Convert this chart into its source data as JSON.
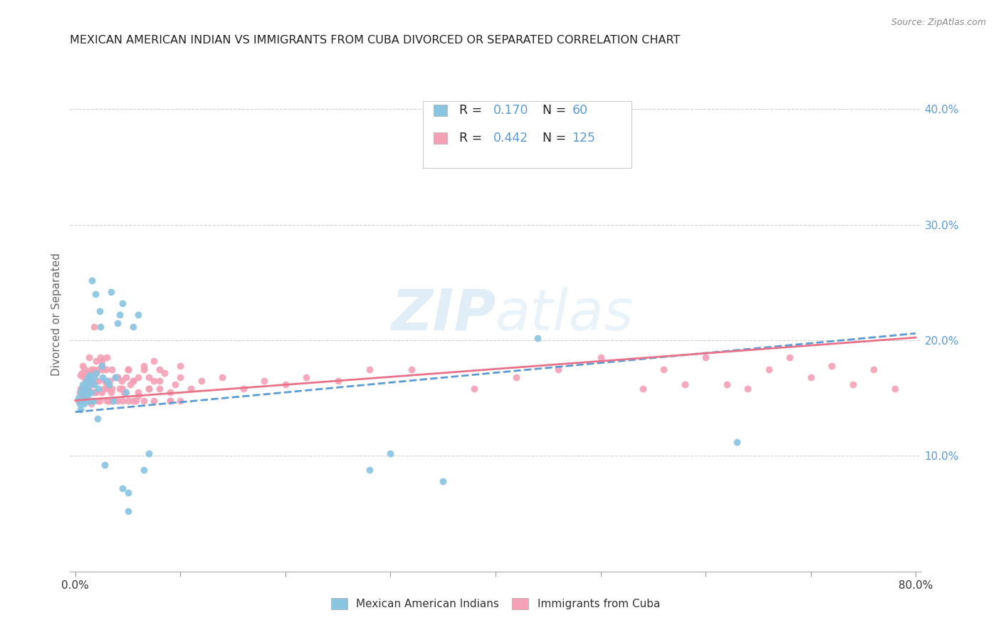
{
  "title": "MEXICAN AMERICAN INDIAN VS IMMIGRANTS FROM CUBA DIVORCED OR SEPARATED CORRELATION CHART",
  "source": "Source: ZipAtlas.com",
  "ylabel": "Divorced or Separated",
  "color_blue": "#89c4e1",
  "color_pink": "#f4a0b5",
  "color_blue_line": "#5b9bd5",
  "color_pink_line": "#e8728a",
  "color_axis_text": "#5b9bd5",
  "watermark": "ZIPatlas",
  "blue_intercept": 0.138,
  "blue_slope": 0.085,
  "pink_intercept": 0.148,
  "pink_slope": 0.068,
  "blue_x": [
    0.003,
    0.004,
    0.005,
    0.005,
    0.006,
    0.006,
    0.007,
    0.007,
    0.008,
    0.008,
    0.009,
    0.009,
    0.01,
    0.01,
    0.01,
    0.011,
    0.011,
    0.012,
    0.012,
    0.013,
    0.013,
    0.014,
    0.014,
    0.015,
    0.015,
    0.016,
    0.016,
    0.017,
    0.018,
    0.018,
    0.019,
    0.02,
    0.021,
    0.022,
    0.023,
    0.024,
    0.025,
    0.026,
    0.028,
    0.03,
    0.032,
    0.034,
    0.036,
    0.038,
    0.04,
    0.042,
    0.045,
    0.048,
    0.05,
    0.055,
    0.06,
    0.065,
    0.07,
    0.045,
    0.05,
    0.28,
    0.3,
    0.35,
    0.44,
    0.63
  ],
  "blue_y": [
    0.15,
    0.145,
    0.155,
    0.14,
    0.148,
    0.158,
    0.155,
    0.162,
    0.145,
    0.158,
    0.162,
    0.15,
    0.148,
    0.158,
    0.165,
    0.162,
    0.152,
    0.168,
    0.155,
    0.162,
    0.148,
    0.17,
    0.148,
    0.165,
    0.155,
    0.252,
    0.148,
    0.148,
    0.162,
    0.168,
    0.24,
    0.172,
    0.132,
    0.158,
    0.225,
    0.212,
    0.178,
    0.168,
    0.092,
    0.165,
    0.162,
    0.242,
    0.148,
    0.168,
    0.215,
    0.222,
    0.072,
    0.155,
    0.052,
    0.212,
    0.222,
    0.088,
    0.102,
    0.232,
    0.068,
    0.088,
    0.102,
    0.078,
    0.202,
    0.112
  ],
  "pink_x": [
    0.003,
    0.004,
    0.005,
    0.005,
    0.006,
    0.006,
    0.007,
    0.007,
    0.008,
    0.008,
    0.009,
    0.009,
    0.01,
    0.01,
    0.011,
    0.011,
    0.012,
    0.012,
    0.013,
    0.013,
    0.014,
    0.014,
    0.015,
    0.015,
    0.016,
    0.016,
    0.017,
    0.018,
    0.018,
    0.019,
    0.02,
    0.02,
    0.021,
    0.022,
    0.022,
    0.023,
    0.024,
    0.025,
    0.026,
    0.027,
    0.028,
    0.029,
    0.03,
    0.031,
    0.032,
    0.033,
    0.034,
    0.035,
    0.036,
    0.038,
    0.04,
    0.042,
    0.044,
    0.046,
    0.048,
    0.05,
    0.052,
    0.055,
    0.058,
    0.06,
    0.065,
    0.07,
    0.075,
    0.08,
    0.09,
    0.1,
    0.11,
    0.12,
    0.14,
    0.16,
    0.18,
    0.2,
    0.22,
    0.25,
    0.28,
    0.32,
    0.38,
    0.42,
    0.46,
    0.5,
    0.54,
    0.56,
    0.58,
    0.6,
    0.62,
    0.64,
    0.66,
    0.68,
    0.7,
    0.72,
    0.74,
    0.76,
    0.78,
    0.025,
    0.03,
    0.035,
    0.04,
    0.045,
    0.05,
    0.055,
    0.06,
    0.065,
    0.07,
    0.075,
    0.08,
    0.09,
    0.1,
    0.015,
    0.02,
    0.025,
    0.03,
    0.035,
    0.04,
    0.045,
    0.05,
    0.055,
    0.06,
    0.065,
    0.07,
    0.075,
    0.08,
    0.085,
    0.09,
    0.095,
    0.1
  ],
  "pink_y": [
    0.148,
    0.155,
    0.158,
    0.17,
    0.152,
    0.172,
    0.148,
    0.178,
    0.152,
    0.168,
    0.155,
    0.175,
    0.148,
    0.165,
    0.172,
    0.152,
    0.158,
    0.168,
    0.148,
    0.185,
    0.162,
    0.172,
    0.155,
    0.175,
    0.148,
    0.162,
    0.175,
    0.155,
    0.212,
    0.165,
    0.155,
    0.182,
    0.148,
    0.165,
    0.175,
    0.148,
    0.185,
    0.155,
    0.175,
    0.158,
    0.165,
    0.175,
    0.148,
    0.158,
    0.148,
    0.165,
    0.155,
    0.158,
    0.148,
    0.168,
    0.148,
    0.158,
    0.165,
    0.155,
    0.168,
    0.148,
    0.162,
    0.148,
    0.148,
    0.168,
    0.148,
    0.158,
    0.148,
    0.165,
    0.148,
    0.148,
    0.158,
    0.165,
    0.168,
    0.158,
    0.165,
    0.162,
    0.168,
    0.165,
    0.175,
    0.175,
    0.158,
    0.168,
    0.175,
    0.185,
    0.158,
    0.175,
    0.162,
    0.185,
    0.162,
    0.158,
    0.175,
    0.185,
    0.168,
    0.178,
    0.162,
    0.175,
    0.158,
    0.178,
    0.185,
    0.175,
    0.168,
    0.148,
    0.175,
    0.165,
    0.152,
    0.178,
    0.158,
    0.165,
    0.175,
    0.155,
    0.168,
    0.145,
    0.172,
    0.182,
    0.162,
    0.148,
    0.168,
    0.158,
    0.175,
    0.165,
    0.155,
    0.175,
    0.168,
    0.182,
    0.158,
    0.172,
    0.148,
    0.162,
    0.178
  ]
}
